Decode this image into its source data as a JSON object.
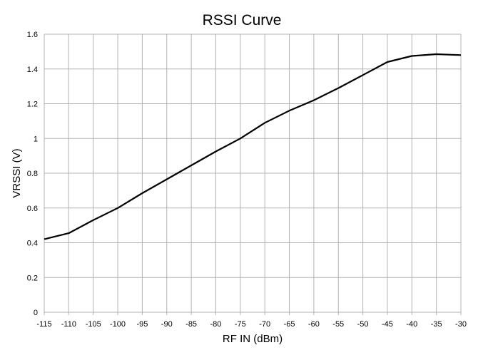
{
  "chart_data": {
    "type": "line",
    "title": "RSSI Curve",
    "xlabel": "RF IN (dBm)",
    "ylabel": "VRSSI (V)",
    "xlim": [
      -115,
      -30
    ],
    "ylim": [
      0,
      1.6
    ],
    "grid": true,
    "x_ticks": [
      -115,
      -110,
      -105,
      -100,
      -95,
      -90,
      -85,
      -80,
      -75,
      -70,
      -65,
      -60,
      -55,
      -50,
      -45,
      -40,
      -35,
      -30
    ],
    "y_ticks": [
      0,
      0.2,
      0.4,
      0.6,
      0.8,
      1,
      1.2,
      1.4,
      1.6
    ],
    "y_tick_labels": [
      "0",
      "0.2",
      "0.4",
      "0.6",
      "0.8",
      "1",
      "1.2",
      "1.4",
      "1.6"
    ],
    "series": [
      {
        "name": "VRSSI",
        "color": "#000000",
        "x": [
          -115,
          -110,
          -105,
          -100,
          -95,
          -90,
          -85,
          -80,
          -75,
          -70,
          -65,
          -60,
          -55,
          -50,
          -45,
          -40,
          -35,
          -30
        ],
        "y": [
          0.42,
          0.455,
          0.53,
          0.6,
          0.685,
          0.765,
          0.845,
          0.925,
          1.0,
          1.09,
          1.16,
          1.22,
          1.29,
          1.365,
          1.44,
          1.475,
          1.485,
          1.48
        ]
      }
    ]
  }
}
